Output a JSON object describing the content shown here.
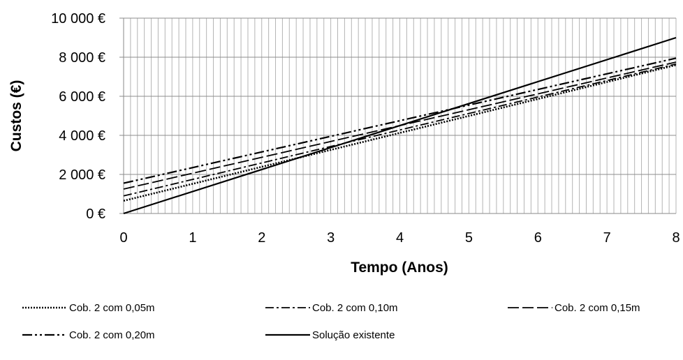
{
  "chart_data": {
    "type": "line",
    "xlabel": "Tempo (Anos)",
    "ylabel": "Custos (€)",
    "xlim": [
      0,
      8
    ],
    "ylim": [
      0,
      10000
    ],
    "x_ticks": [
      "0",
      "1",
      "2",
      "3",
      "4",
      "5",
      "6",
      "7",
      "8"
    ],
    "y_ticks": [
      "0 €",
      "2 000 €",
      "4 000 €",
      "6 000 €",
      "8 000 €",
      "10 000 €"
    ],
    "grid": "vertical minor gridlines, horizontal major gridlines",
    "legend_position": "bottom",
    "series": [
      {
        "name": "Cob. 2 com 0,05m",
        "style": "dotted",
        "x": [
          0,
          8
        ],
        "y": [
          650,
          7600
        ]
      },
      {
        "name": "Cob. 2  com 0,10m",
        "style": "dash-dot",
        "x": [
          0,
          8
        ],
        "y": [
          900,
          7650
        ]
      },
      {
        "name": "Cob. 2  com 0,15m",
        "style": "long-dash",
        "x": [
          0,
          8
        ],
        "y": [
          1250,
          7750
        ]
      },
      {
        "name": "Cob. 2  com 0,20m",
        "style": "dash-dot-dot",
        "x": [
          0,
          8
        ],
        "y": [
          1550,
          7950
        ]
      },
      {
        "name": "Solução existente",
        "style": "solid",
        "x": [
          0,
          8
        ],
        "y": [
          0,
          9000
        ]
      }
    ]
  }
}
